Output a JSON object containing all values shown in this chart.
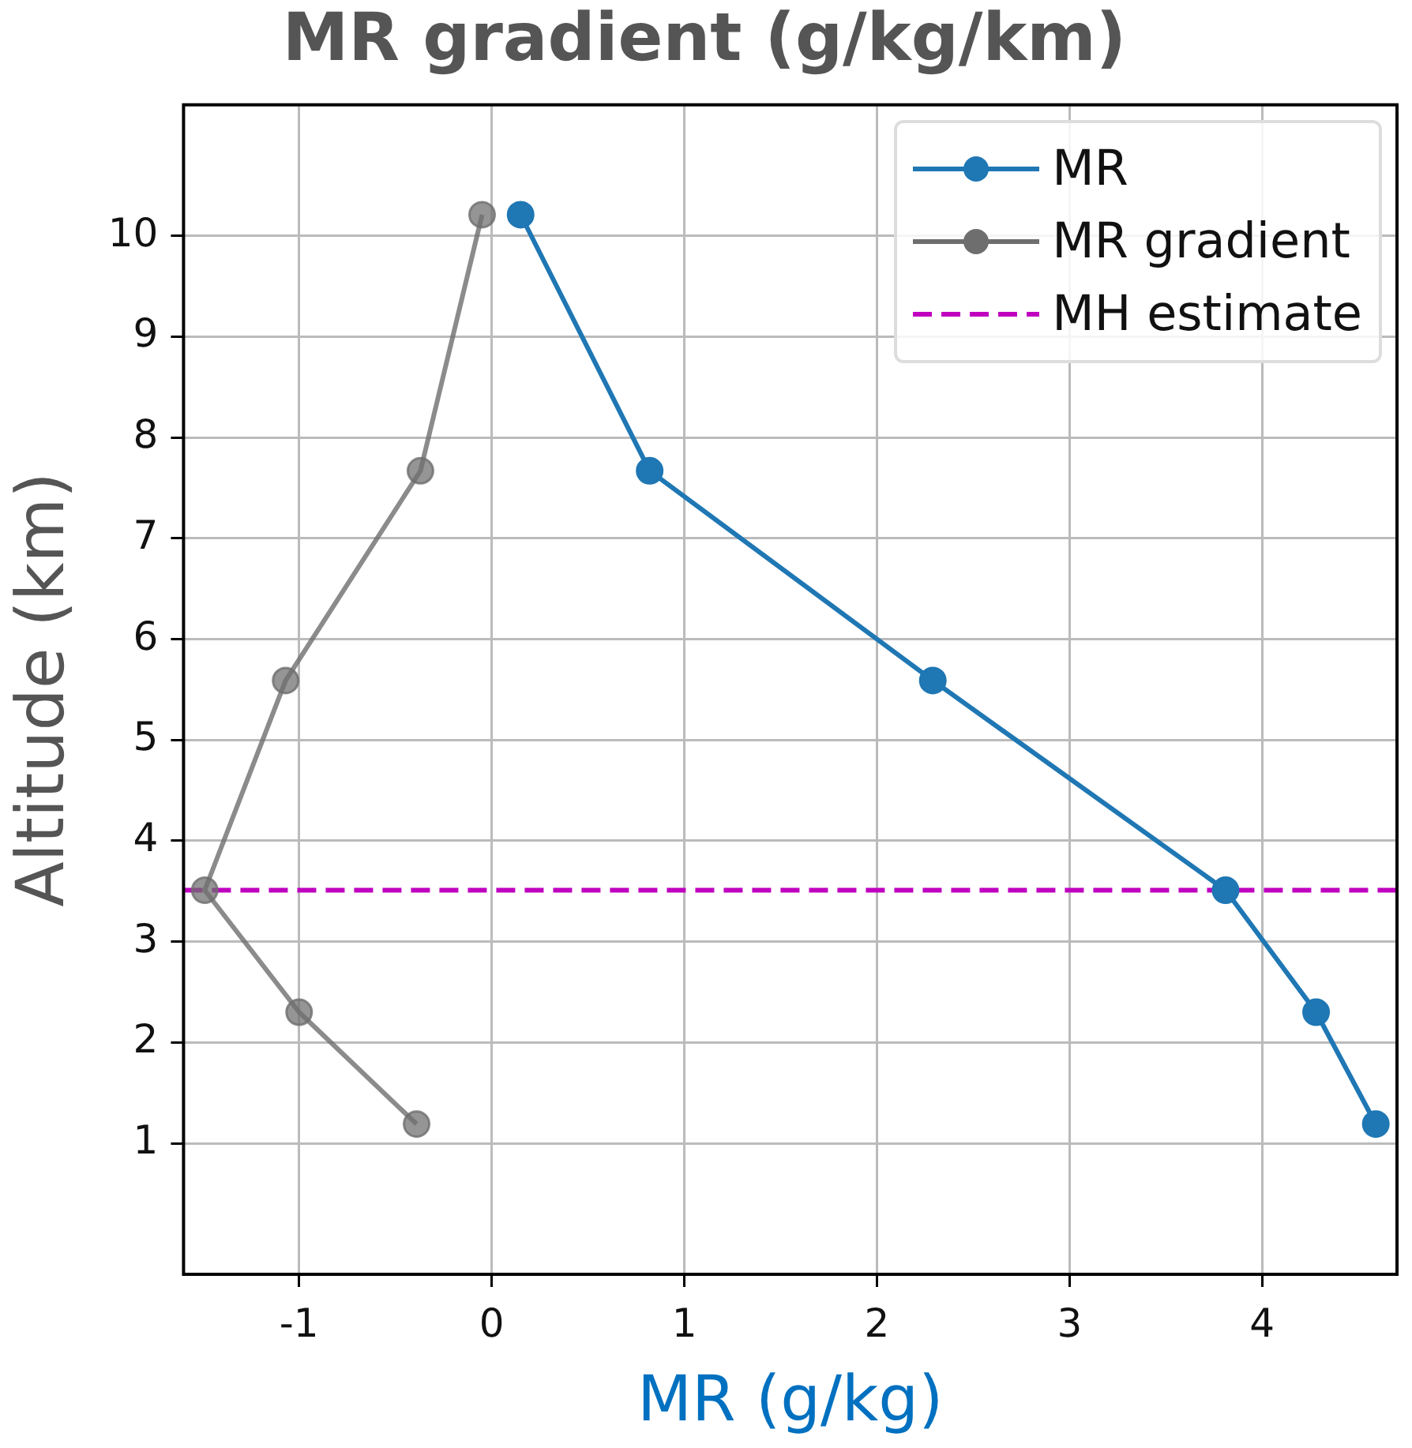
{
  "chart_data": {
    "type": "line",
    "title": "MR gradient (g/kg/km)",
    "xlabel": "MR (g/kg)",
    "ylabel": "Altitude (km)",
    "series": [
      {
        "name": "MR",
        "color": "#1f77b4",
        "x": [
          0.15,
          0.82,
          2.29,
          3.81,
          4.28,
          4.59
        ],
        "values": [
          10.21,
          7.67,
          5.59,
          3.51,
          2.3,
          1.19
        ]
      },
      {
        "name": "MR gradient",
        "color": "#6e6e6e",
        "x": [
          -0.05,
          -0.37,
          -1.07,
          -1.49,
          -1.0,
          -0.39
        ],
        "values": [
          10.21,
          7.67,
          5.59,
          3.51,
          2.3,
          1.19
        ]
      }
    ],
    "ref_lines": [
      {
        "axis": "y",
        "value": 3.51,
        "label": "MH estimate",
        "color": "#bf00bf",
        "line_style": "dashed"
      }
    ],
    "xlim": [
      -1.6,
      4.7
    ],
    "xticks": [
      -1,
      0,
      1,
      2,
      3,
      4
    ],
    "ylim": [
      -0.3,
      11.3
    ],
    "yticks": [
      1,
      2,
      3,
      4,
      5,
      6,
      7,
      8,
      9,
      10
    ],
    "grid": true,
    "legend": "top right",
    "marker": "circle",
    "line_style": "solid"
  }
}
